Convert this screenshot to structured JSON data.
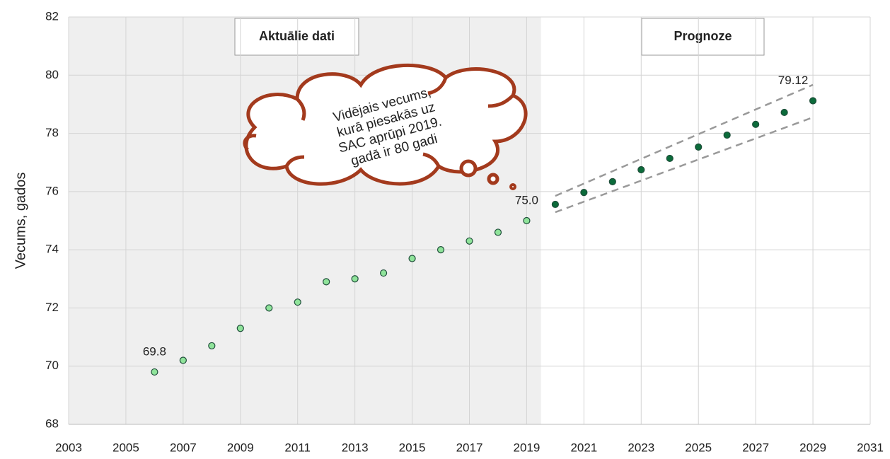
{
  "chart_data": {
    "type": "scatter",
    "y_label": "Vecums, gados",
    "xlim": [
      2003,
      2031
    ],
    "xticks": [
      2003,
      2005,
      2007,
      2009,
      2011,
      2013,
      2015,
      2017,
      2019,
      2021,
      2023,
      2025,
      2027,
      2029,
      2031
    ],
    "ylim": [
      68,
      82
    ],
    "yticks": [
      68,
      70,
      72,
      74,
      76,
      78,
      80,
      82
    ],
    "grid": true,
    "series": [
      {
        "color": "#8fe39a",
        "x": [
          2006,
          2007,
          2008,
          2009,
          2010,
          2011,
          2012,
          2013,
          2014,
          2015,
          2016,
          2017,
          2018,
          2019
        ],
        "values": [
          69.8,
          70.2,
          70.7,
          71.3,
          72.0,
          72.2,
          72.9,
          73.0,
          73.2,
          73.7,
          74.0,
          74.3,
          74.6,
          75.0
        ],
        "value_labels": [
          "69.8",
          null,
          null,
          null,
          null,
          null,
          null,
          null,
          null,
          null,
          null,
          null,
          null,
          "75.0"
        ]
      },
      {
        "color": "#0b6b3a",
        "x": [
          2020,
          2021,
          2022,
          2023,
          2024,
          2025,
          2026,
          2027,
          2028,
          2029
        ],
        "values": [
          75.56,
          75.97,
          76.34,
          76.75,
          77.14,
          77.53,
          77.94,
          78.31,
          78.72,
          79.12
        ],
        "value_labels": [
          null,
          null,
          null,
          null,
          null,
          null,
          null,
          null,
          null,
          "79.12"
        ]
      }
    ],
    "interval_lines": {
      "x": [
        2020,
        2029
      ],
      "upper": [
        75.85,
        79.67
      ],
      "lower": [
        75.29,
        78.55
      ]
    },
    "annotations": {
      "actual": "Aktuālie dati",
      "forecast": "Prognoze",
      "cloud": [
        "Vidējais vecums,",
        "kurā piesakās uz",
        "SAC aprūpi 2019.",
        "gadā ir 80 gadi"
      ]
    }
  }
}
